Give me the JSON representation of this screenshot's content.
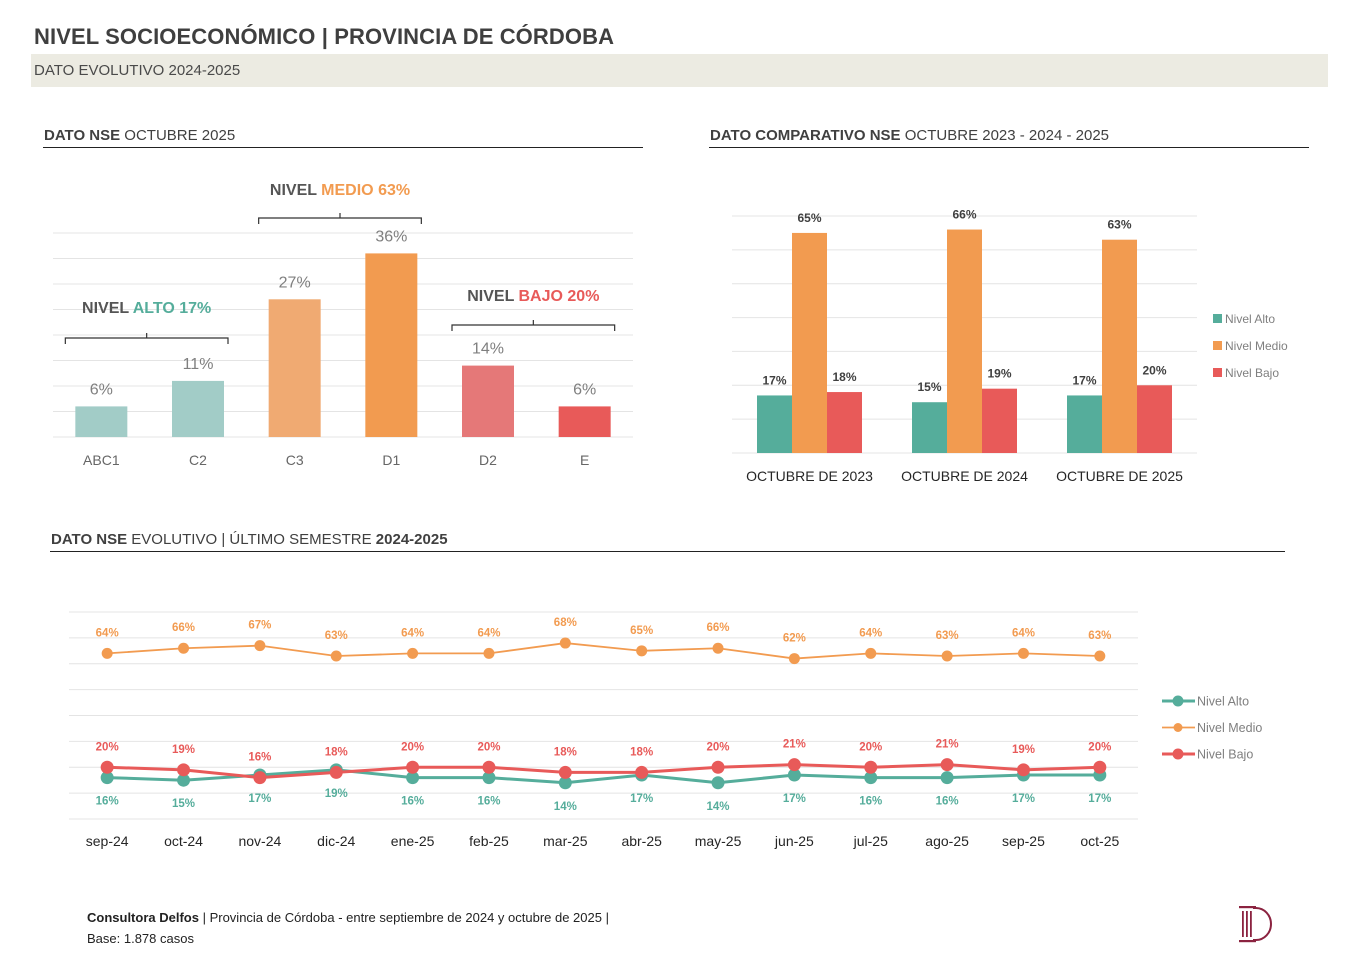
{
  "header": {
    "title": "NIVEL SOCIOECONÓMICO | PROVINCIA DE CÓRDOBA",
    "subtitle": "DATO EVOLUTIVO 2024-2025"
  },
  "sections": {
    "left": {
      "bold": "DATO NSE",
      "rest": " OCTUBRE 2025"
    },
    "right": {
      "bold": "DATO COMPARATIVO NSE",
      "rest": " OCTUBRE 2023 - 2024 - 2025"
    },
    "bottom": {
      "bold": "DATO NSE",
      "rest": " EVOLUTIVO | ÚLTIMO SEMESTRE ",
      "bold2": "2024-2025"
    }
  },
  "colors": {
    "alto": "#55ad9b",
    "alto_light": "#a2ccc7",
    "medio": "#f29b50",
    "medio_light": "#f0aa72",
    "bajo": "#e85a59",
    "bajo_light": "#e57878",
    "label_grey": "#7f7f7f",
    "grid": "#e4e4e4",
    "logo": "#8b2340"
  },
  "chart_data": [
    {
      "id": "nse-octubre-2025",
      "type": "bar",
      "title": "DATO NSE OCTUBRE 2025",
      "categories": [
        "ABC1",
        "C2",
        "C3",
        "D1",
        "D2",
        "E"
      ],
      "values": [
        6,
        11,
        27,
        36,
        14,
        6
      ],
      "value_labels": [
        "6%",
        "11%",
        "27%",
        "36%",
        "14%",
        "6%"
      ],
      "group": [
        "alto",
        "alto",
        "medio",
        "medio",
        "bajo",
        "bajo"
      ],
      "ylim": [
        0,
        40
      ],
      "grid_step": 5,
      "grid": true,
      "annotations": [
        {
          "prefix": "NIVEL ",
          "label": "ALTO 17%",
          "group": "alto",
          "covers": [
            "ABC1",
            "C2"
          ]
        },
        {
          "prefix": "NIVEL ",
          "label": "MEDIO 63%",
          "group": "medio",
          "covers": [
            "C3",
            "D1"
          ]
        },
        {
          "prefix": "NIVEL ",
          "label": "BAJO 20%",
          "group": "bajo",
          "covers": [
            "D2",
            "E"
          ]
        }
      ]
    },
    {
      "id": "nse-comparativo",
      "type": "bar",
      "title": "DATO COMPARATIVO NSE OCTUBRE 2023 - 2024 - 2025",
      "categories": [
        "OCTUBRE DE 2023",
        "OCTUBRE DE 2024",
        "OCTUBRE DE 2025"
      ],
      "series": [
        {
          "name": "Nivel Alto",
          "key": "alto",
          "values": [
            17,
            15,
            17
          ],
          "labels": [
            "17%",
            "15%",
            "17%"
          ]
        },
        {
          "name": "Nivel Medio",
          "key": "medio",
          "values": [
            65,
            66,
            63
          ],
          "labels": [
            "65%",
            "66%",
            "63%"
          ]
        },
        {
          "name": "Nivel Bajo",
          "key": "bajo",
          "values": [
            18,
            19,
            20
          ],
          "labels": [
            "18%",
            "19%",
            "20%"
          ]
        }
      ],
      "ylim": [
        0,
        70
      ],
      "grid_step": 10,
      "grid": true,
      "legend": "right"
    },
    {
      "id": "nse-evolutivo",
      "type": "line",
      "title": "DATO NSE EVOLUTIVO | ÚLTIMO SEMESTRE 2024-2025",
      "categories": [
        "sep-24",
        "oct-24",
        "nov-24",
        "dic-24",
        "ene-25",
        "feb-25",
        "mar-25",
        "abr-25",
        "may-25",
        "jun-25",
        "jul-25",
        "ago-25",
        "sep-25",
        "oct-25"
      ],
      "series": [
        {
          "name": "Nivel Alto",
          "key": "alto",
          "values": [
            16,
            15,
            17,
            19,
            16,
            16,
            14,
            17,
            14,
            17,
            16,
            16,
            17,
            17
          ],
          "label_pos": "below"
        },
        {
          "name": "Nivel Medio",
          "key": "medio",
          "values": [
            64,
            66,
            67,
            63,
            64,
            64,
            68,
            65,
            66,
            62,
            64,
            63,
            64,
            63
          ],
          "label_pos": "above"
        },
        {
          "name": "Nivel Bajo",
          "key": "bajo",
          "values": [
            20,
            19,
            16,
            18,
            20,
            20,
            18,
            18,
            20,
            21,
            20,
            21,
            19,
            20
          ],
          "label_pos": "above"
        }
      ],
      "ylim": [
        0,
        80
      ],
      "grid_step": 10,
      "grid": true,
      "legend": "right"
    }
  ],
  "footer": {
    "brand": "Consultora Delfos",
    "line1": " | Provincia de Córdoba - entre septiembre de 2024 y  octubre de 2025 |",
    "line2": "Base: 1.878 casos"
  },
  "logo": {
    "icon": "delfos-column-d-logo"
  }
}
